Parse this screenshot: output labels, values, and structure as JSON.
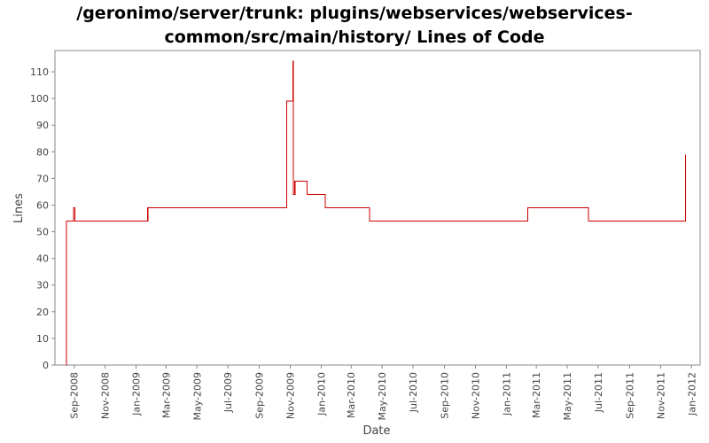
{
  "chart_data": {
    "type": "line",
    "title_lines": [
      "/geronimo/server/trunk: plugins/webservices/webservices-",
      "common/src/main/history/ Lines of Code"
    ],
    "xlabel": "Date",
    "ylabel": "Lines",
    "ylim": [
      0,
      118
    ],
    "xlim": [
      "2008-07-25",
      "2012-01-18"
    ],
    "grid": false,
    "line_color": "#cc0000",
    "x_tick_labels": [
      {
        "label": "Sep-2008",
        "date": "2008-09-01"
      },
      {
        "label": "Nov-2008",
        "date": "2008-11-01"
      },
      {
        "label": "Jan-2009",
        "date": "2009-01-01"
      },
      {
        "label": "Mar-2009",
        "date": "2009-03-01"
      },
      {
        "label": "May-2009",
        "date": "2009-05-01"
      },
      {
        "label": "Jul-2009",
        "date": "2009-07-01"
      },
      {
        "label": "Sep-2009",
        "date": "2009-09-01"
      },
      {
        "label": "Nov-2009",
        "date": "2009-11-01"
      },
      {
        "label": "Jan-2010",
        "date": "2010-01-01"
      },
      {
        "label": "Mar-2010",
        "date": "2010-03-01"
      },
      {
        "label": "May-2010",
        "date": "2010-05-01"
      },
      {
        "label": "Jul-2010",
        "date": "2010-07-01"
      },
      {
        "label": "Sep-2010",
        "date": "2010-09-01"
      },
      {
        "label": "Nov-2010",
        "date": "2010-11-01"
      },
      {
        "label": "Jan-2011",
        "date": "2011-01-01"
      },
      {
        "label": "Mar-2011",
        "date": "2011-03-01"
      },
      {
        "label": "May-2011",
        "date": "2011-05-01"
      },
      {
        "label": "Jul-2011",
        "date": "2011-07-01"
      },
      {
        "label": "Sep-2011",
        "date": "2011-09-01"
      },
      {
        "label": "Nov-2011",
        "date": "2011-11-01"
      },
      {
        "label": "Jan-2012",
        "date": "2012-01-01"
      }
    ],
    "y_ticks": [
      0,
      10,
      20,
      30,
      40,
      50,
      60,
      70,
      80,
      90,
      100,
      110
    ],
    "series": [
      {
        "step": "post",
        "points": [
          {
            "x": "2008-08-16",
            "y": 0
          },
          {
            "x": "2008-08-17",
            "y": 54
          },
          {
            "x": "2008-08-31",
            "y": 59
          },
          {
            "x": "2008-09-02",
            "y": 54
          },
          {
            "x": "2009-01-24",
            "y": 59
          },
          {
            "x": "2009-10-25",
            "y": 99
          },
          {
            "x": "2009-11-06",
            "y": 114
          },
          {
            "x": "2009-11-07",
            "y": 64
          },
          {
            "x": "2009-11-10",
            "y": 69
          },
          {
            "x": "2009-12-04",
            "y": 64
          },
          {
            "x": "2010-01-09",
            "y": 59
          },
          {
            "x": "2010-04-06",
            "y": 54
          },
          {
            "x": "2011-02-12",
            "y": 59
          },
          {
            "x": "2011-06-12",
            "y": 54
          },
          {
            "x": "2011-12-20",
            "y": 79
          },
          {
            "x": "2011-12-20",
            "y": 79
          }
        ]
      }
    ]
  }
}
